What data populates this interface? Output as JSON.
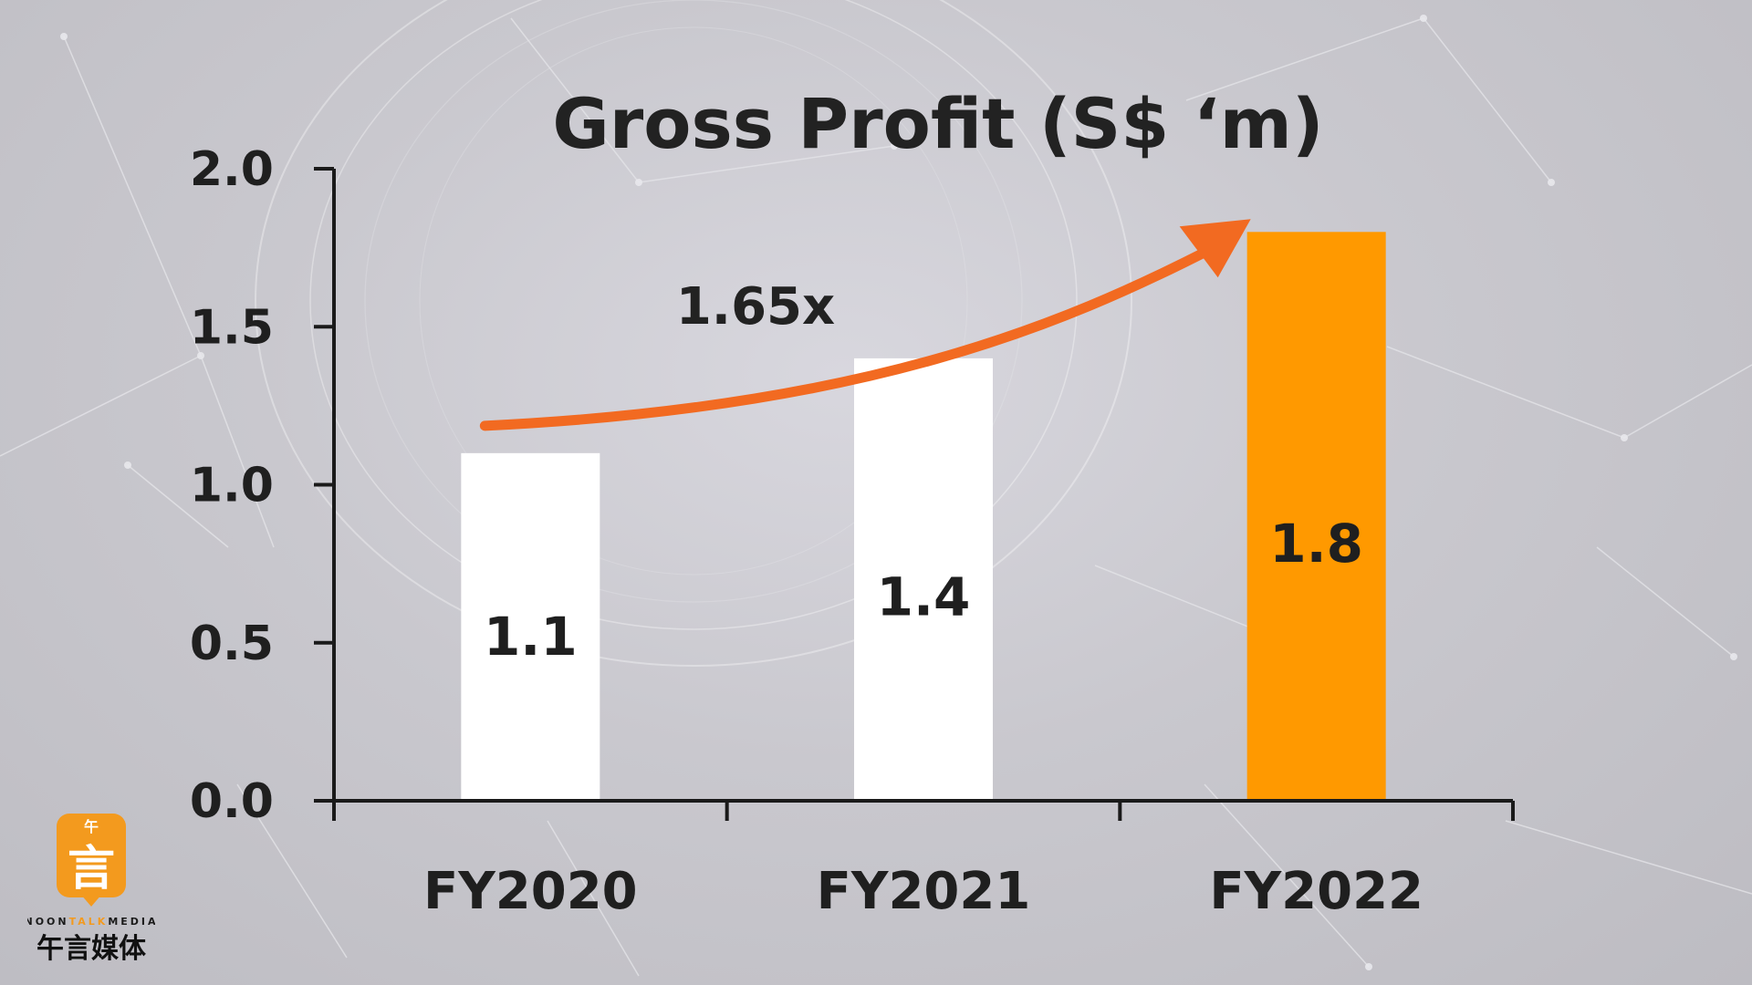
{
  "chart_data": {
    "type": "bar",
    "title": "Gross Profit (S$ ‘m)",
    "categories": [
      "FY2020",
      "FY2021",
      "FY2022"
    ],
    "values": [
      1.1,
      1.4,
      1.8
    ],
    "value_labels": [
      "1.1",
      "1.4",
      "1.8"
    ],
    "y_ticks": [
      "0.0",
      "0.5",
      "1.0",
      "1.5",
      "2.0"
    ],
    "ylim": [
      0,
      2.0
    ],
    "xlabel": "",
    "ylabel": "",
    "grid": false,
    "bar_colors": [
      "#ffffff",
      "#ffffff",
      "#ff9900"
    ],
    "annotation": {
      "text": "1.65x",
      "arrow_color": "#f26a21",
      "from_category": "FY2020",
      "to_category": "FY2022"
    }
  },
  "logo": {
    "glyph": "言",
    "top_glyph": "午",
    "brand_en_1": "NOON",
    "brand_en_2": "TALK",
    "brand_en_3": "MEDIA",
    "brand_cn": "午言媒体",
    "color": "#f39a1e"
  }
}
